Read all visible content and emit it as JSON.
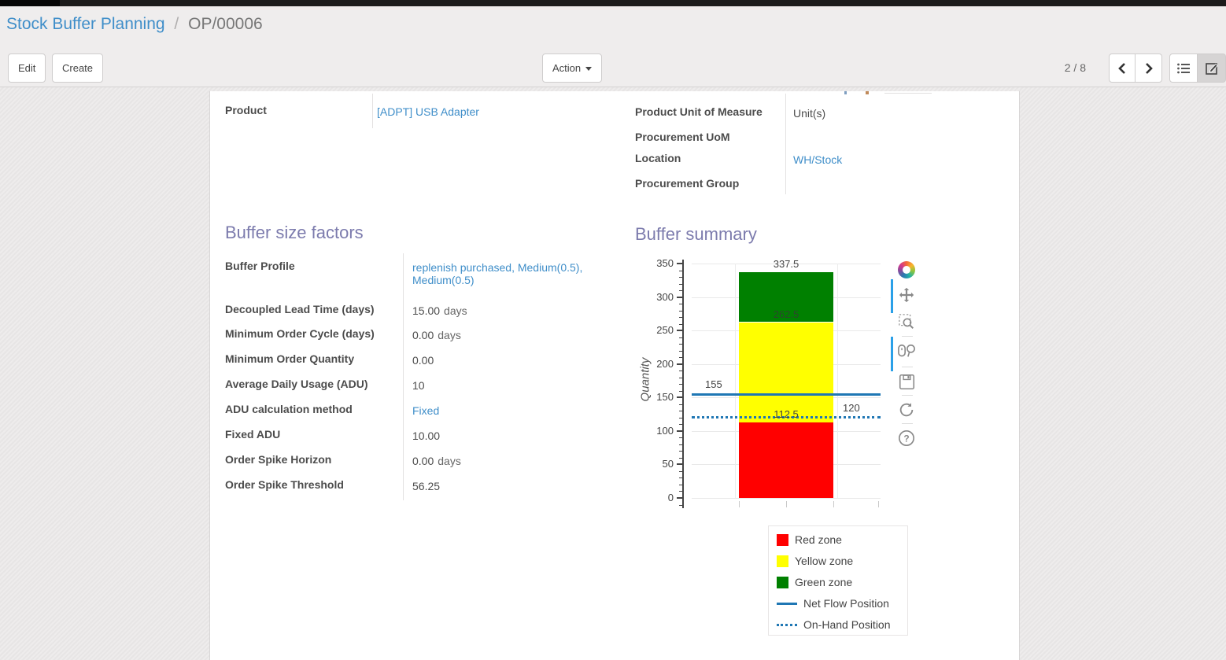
{
  "breadcrumb": {
    "parent": "Stock Buffer Planning",
    "separator": "/",
    "current": "OP/00006"
  },
  "control_panel": {
    "edit_label": "Edit",
    "create_label": "Create",
    "action_label": "Action",
    "pager_text": "2 / 8",
    "pager_icons": [
      "chevron-left-icon",
      "chevron-right-icon"
    ],
    "view_switcher_icons": [
      "list-view-icon",
      "form-view-icon"
    ],
    "active_view": "form"
  },
  "form": {
    "left_fields": [
      {
        "label": "Product",
        "value": "[ADPT] USB Adapter",
        "is_link": true
      }
    ],
    "right_fields": [
      {
        "label": "Product Unit of Measure",
        "value": "Unit(s)",
        "is_link": false
      },
      {
        "label": "Procurement UoM",
        "value": "",
        "is_link": false
      },
      {
        "label": "Location",
        "value": "WH/Stock",
        "is_link": true
      },
      {
        "label": "Procurement Group",
        "value": "",
        "is_link": false
      }
    ]
  },
  "buffer_factors": {
    "title": "Buffer size factors",
    "rows": [
      {
        "label": "Buffer Profile",
        "value": "replenish purchased, Medium(0.5), Medium(0.5)",
        "is_link": true
      },
      {
        "label": "Decoupled Lead Time (days)",
        "value": "15.00",
        "suffix": "days"
      },
      {
        "label": "Minimum Order Cycle (days)",
        "value": "0.00",
        "suffix": "days"
      },
      {
        "label": "Minimum Order Quantity",
        "value": "0.00"
      },
      {
        "label": "Average Daily Usage (ADU)",
        "value": "10"
      },
      {
        "label": "ADU calculation method",
        "value": "Fixed",
        "is_link": true
      },
      {
        "label": "Fixed ADU",
        "value": "10.00"
      },
      {
        "label": "Order Spike Horizon",
        "value": "0.00",
        "suffix": "days"
      },
      {
        "label": "Order Spike Threshold",
        "value": "56.25"
      }
    ]
  },
  "buffer_summary": {
    "title": "Buffer summary"
  },
  "chart_data": {
    "type": "bar",
    "title": "Buffer summary",
    "ylabel": "Quantity",
    "xlabel": "",
    "ylim": [
      0,
      350
    ],
    "yticks": [
      0,
      50,
      100,
      150,
      200,
      250,
      300,
      350
    ],
    "minor_tick_step": 10,
    "grid": true,
    "categories": [
      ""
    ],
    "series": [
      {
        "name": "Red zone",
        "values": [
          112.5
        ],
        "color": "#ff0000"
      },
      {
        "name": "Yellow zone",
        "values": [
          150
        ],
        "color": "#ffff00"
      },
      {
        "name": "Green zone",
        "values": [
          75
        ],
        "color": "#008000"
      }
    ],
    "zones": [
      {
        "name": "Red zone",
        "from": 0,
        "to": 112.5,
        "color": "#ff0000"
      },
      {
        "name": "Yellow zone",
        "from": 112.5,
        "to": 262.5,
        "color": "#ffff00"
      },
      {
        "name": "Green zone",
        "from": 262.5,
        "to": 337.5,
        "color": "#008000"
      }
    ],
    "lines": [
      {
        "name": "Net Flow Position",
        "value": 155,
        "style": "solid",
        "color": "#1f77b4",
        "label": "155",
        "label_placement": "above-line-left"
      },
      {
        "name": "On-Hand Position",
        "value": 120,
        "style": "dotted",
        "color": "#1f77b4",
        "label": "120",
        "label_placement": "above-line-right"
      }
    ],
    "annotations": [
      {
        "text": "337.5",
        "value": 337.5,
        "placement": "above-bar-center"
      },
      {
        "text": "262.5",
        "value": 262.5,
        "placement": "inside-bar-center"
      },
      {
        "text": "112.5",
        "value": 112.5,
        "placement": "above-boundary-center"
      }
    ],
    "legend_position": "bottom-right",
    "legend": [
      {
        "label": "Red zone",
        "swatch": "square",
        "color": "#ff0000"
      },
      {
        "label": "Yellow zone",
        "swatch": "square",
        "color": "#ffff00"
      },
      {
        "label": "Green zone",
        "swatch": "square",
        "color": "#008000"
      },
      {
        "label": "Net Flow Position",
        "swatch": "line",
        "color": "#1f77b4"
      },
      {
        "label": "On-Hand Position",
        "swatch": "dotted",
        "color": "#1f77b4"
      }
    ],
    "modebar_icons": [
      "plotly-logo-icon",
      "pan-icon",
      "zoom-icon",
      "compare-hover-icon",
      "save-icon",
      "reset-axes-icon",
      "help-icon"
    ]
  }
}
